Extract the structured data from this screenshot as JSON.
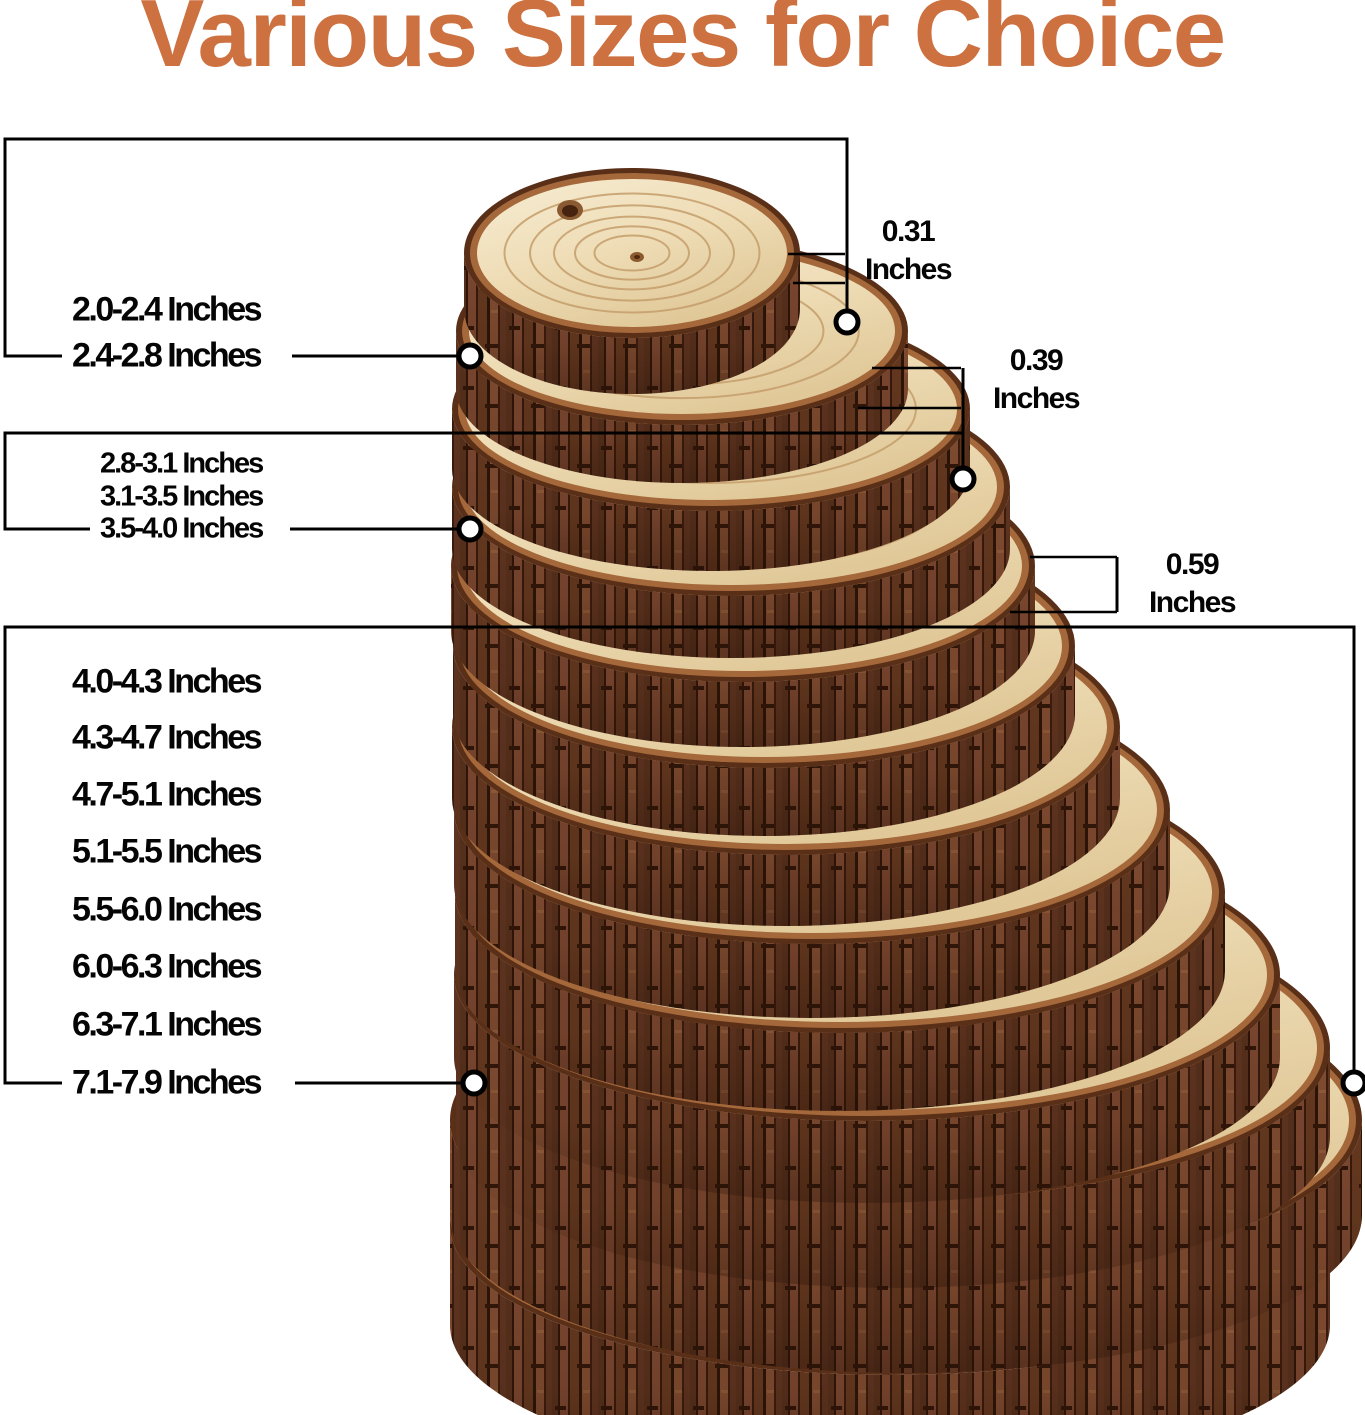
{
  "title": {
    "text": "Various Sizes for Choice",
    "color": "#cd7140"
  },
  "diameter_groups": [
    {
      "labels": [
        "2.0-2.4 Inches",
        "2.4-2.8 Inches"
      ]
    },
    {
      "labels": [
        "2.8-3.1 Inches",
        "3.1-3.5 Inches",
        "3.5-4.0 Inches"
      ]
    },
    {
      "labels": [
        "4.0-4.3 Inches",
        "4.3-4.7 Inches",
        "4.7-5.1 Inches",
        "5.1-5.5 Inches",
        "5.5-6.0 Inches",
        "6.0-6.3 Inches",
        "6.3-7.1 Inches",
        "7.1-7.9 Inches"
      ]
    }
  ],
  "thickness_labels": [
    {
      "value": "0.31",
      "unit": "Inches"
    },
    {
      "value": "0.39",
      "unit": "Inches"
    },
    {
      "value": "0.59",
      "unit": "Inches"
    }
  ],
  "colors": {
    "title_accent": "#cd7140",
    "annotation": "#000000",
    "wood_face": "#eed9af",
    "bark": "#6b3d27",
    "background": "#ffffff"
  }
}
